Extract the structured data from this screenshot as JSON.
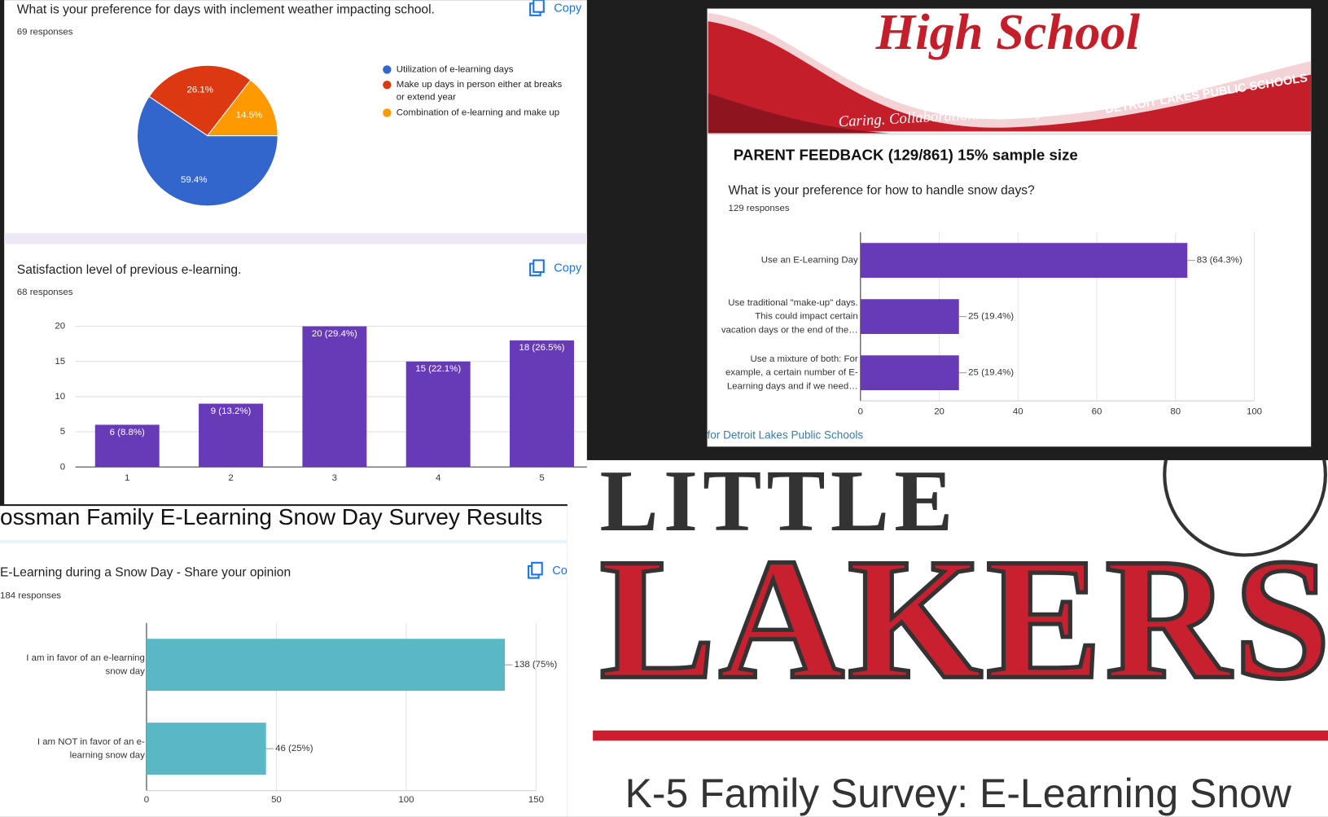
{
  "chart_data": [
    {
      "type": "pie",
      "title": "What is your preference for days with inclement weather impacting school.",
      "subtitle": "69 responses",
      "action": "Copy",
      "categories": [
        "Utilization of e-learning days",
        "Make up days in person either at breaks or extend year",
        "Combination of e-learning and make up"
      ],
      "values": [
        59.4,
        26.1,
        14.5
      ],
      "value_labels": [
        "59.4%",
        "26.1%",
        "14.5%"
      ],
      "colors": [
        "#3366cc",
        "#dc3912",
        "#ff9900"
      ]
    },
    {
      "type": "bar",
      "title": "Satisfaction level of previous e-learning.",
      "subtitle": "68 responses",
      "action": "Copy",
      "categories": [
        "1",
        "2",
        "3",
        "4",
        "5"
      ],
      "values": [
        6,
        9,
        20,
        15,
        18
      ],
      "value_labels": [
        "6 (8.8%)",
        "9 (13.2%)",
        "20 (29.4%)",
        "15 (22.1%)",
        "18 (26.5%)"
      ],
      "color": "#673ab7",
      "ylim": [
        0,
        20
      ],
      "yticks": [
        0,
        5,
        10,
        15,
        20
      ],
      "grid": true
    },
    {
      "type": "bar",
      "horizontal": true,
      "heading": "PARENT FEEDBACK (129/861) 15% sample size",
      "title": "What is your preference for how to handle snow days?",
      "subtitle": "129 responses",
      "categories": [
        "Use an E-Learning Day",
        "Use traditional \"make-up\" days. This could impact certain vacation days or the end of the…",
        "Use a mixture of both: For example, a certain number of E-Learning days and if we need…"
      ],
      "values": [
        83,
        25,
        25
      ],
      "value_labels": [
        "83 (64.3%)",
        "25 (19.4%)",
        "25 (19.4%)"
      ],
      "color": "#673ab7",
      "xlim": [
        0,
        100
      ],
      "xticks": [
        0,
        20,
        40,
        60,
        80,
        100
      ],
      "grid": true,
      "footer": "for Detroit Lakes Public Schools"
    },
    {
      "type": "bar",
      "horizontal": true,
      "heading": "ossman Family E-Learning Snow Day Survey Results",
      "title": "E-Learning during a Snow Day - Share your opinion",
      "subtitle": "184 responses",
      "action": "Copy",
      "categories": [
        "I am in favor of an e-learning snow day",
        "I am NOT in favor of an e-learning snow day"
      ],
      "values": [
        138,
        46
      ],
      "value_labels": [
        "138 (75%)",
        "46 (25%)"
      ],
      "color": "#5ab8c6",
      "xlim": [
        0,
        150
      ],
      "xticks": [
        0,
        50,
        100,
        150
      ],
      "grid": true
    }
  ],
  "high_school_banner": {
    "title": "High School",
    "tagline": "Caring. Collaboration. Creativity.",
    "district": "DETROIT LAKES PUBLIC SCHOOLS"
  },
  "little_lakers": {
    "line1": "LITTLE",
    "line2": "LAKERS",
    "subtitle": "K-5 Family Survey: E-Learning Snow"
  }
}
